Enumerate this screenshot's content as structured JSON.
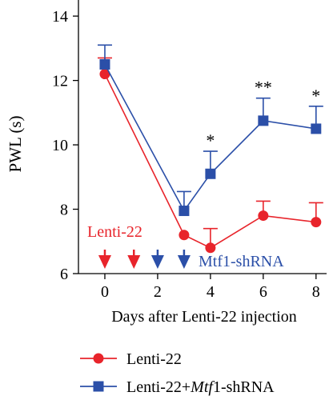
{
  "chart_data": {
    "type": "line",
    "title": "",
    "xlabel": "Days after Lenti-22 injection",
    "ylabel": "PWL (s)",
    "xlim": [
      -1,
      8.4
    ],
    "ylim": [
      6,
      14.5
    ],
    "x_ticks": [
      0,
      2,
      4,
      6,
      8
    ],
    "y_ticks": [
      6,
      8,
      10,
      12,
      14
    ],
    "grid": false,
    "legend_position": "bottom",
    "series": [
      {
        "name": "Lenti-22",
        "color": "#e8242b",
        "marker": "circle",
        "x": [
          0,
          3,
          4,
          6,
          8
        ],
        "y": [
          12.2,
          7.2,
          6.8,
          7.8,
          7.6
        ],
        "error": [
          0.5,
          0.0,
          0.6,
          0.45,
          0.6
        ]
      },
      {
        "name": "Lenti-22+Mtf1-shRNA",
        "name_prefix": "Lenti-22+",
        "name_italic": "Mtf",
        "name_suffix": "1-shRNA",
        "color": "#2b4fa8",
        "marker": "square",
        "x": [
          0,
          3,
          4,
          6,
          8
        ],
        "y": [
          12.5,
          7.95,
          9.1,
          10.75,
          10.5
        ],
        "error": [
          0.6,
          0.6,
          0.7,
          0.7,
          0.7
        ]
      }
    ],
    "significance": [
      {
        "x": 4,
        "label": "*"
      },
      {
        "x": 6,
        "label": "**"
      },
      {
        "x": 8,
        "label": "*"
      }
    ],
    "injections": [
      {
        "x": 0,
        "color": "#e8242b"
      },
      {
        "x": 1.1,
        "color": "#e8242b"
      },
      {
        "x": 2,
        "color": "#2b4fa8"
      },
      {
        "x": 3,
        "color": "#2b4fa8"
      }
    ],
    "annotations": [
      {
        "text": "Lenti-22",
        "color": "#e8242b"
      },
      {
        "text": "Mtf1-shRNA",
        "color": "#2b4fa8"
      }
    ]
  }
}
